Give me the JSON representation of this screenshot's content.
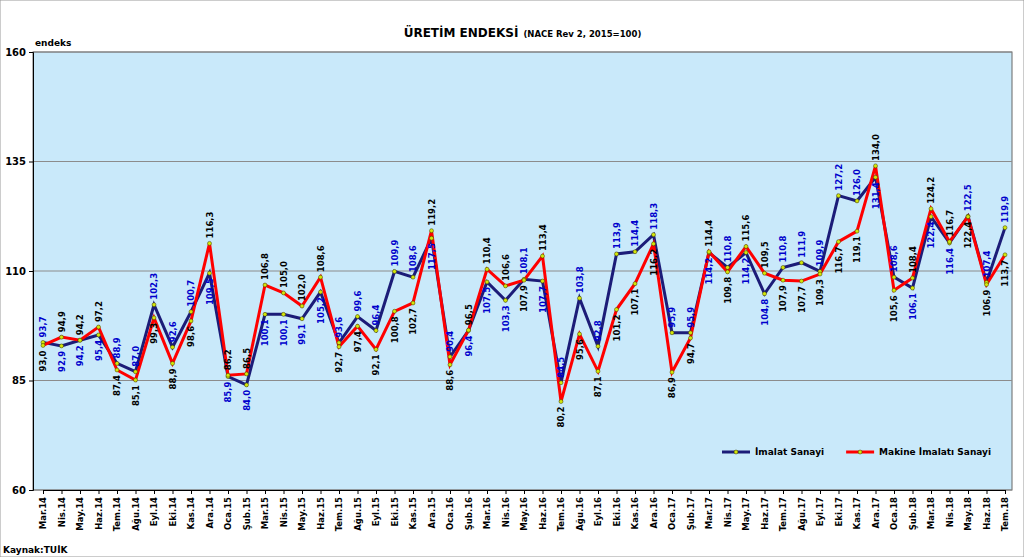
{
  "chart_data": {
    "type": "line",
    "title": "ÜRETİM ENDEKSİ",
    "subtitle": "(NACE Rev 2, 2015=100)",
    "y_label": "endeks",
    "source": "Kaynak:TUİK",
    "categories": [
      "Mar.14",
      "Nis.14",
      "May.14",
      "Haz.14",
      "Tem.14",
      "Ağu.14",
      "Eyl.14",
      "Eki.14",
      "Kas.14",
      "Ara.14",
      "Oca.15",
      "Şub.15",
      "Mar.15",
      "Nis.15",
      "May.15",
      "Haz.15",
      "Tem.15",
      "Ağu.15",
      "Eyl.15",
      "Eki.15",
      "Kas.15",
      "Ara.15",
      "Oca.16",
      "Şub.16",
      "Mar.16",
      "Nis.16",
      "May.16",
      "Haz.16",
      "Tem.16",
      "Ağu.16",
      "Eyl.16",
      "Eki.16",
      "Kas.16",
      "Ara.16",
      "Oca.17",
      "Şub.17",
      "Mar.17",
      "Nis.17",
      "May.17",
      "Haz.17",
      "Tem.17",
      "Ağu.17",
      "Eyl.17",
      "Eki.17",
      "Kas.17",
      "Ara.17",
      "Oca.18",
      "Şub.18",
      "Mar.18",
      "Nis.18",
      "May.18",
      "Haz.18",
      "Tem.18"
    ],
    "series": [
      {
        "name": "İmalat Sanayi",
        "color": "#1c1c78",
        "marker": "circle",
        "line_style": "solid",
        "values": [
          93.7,
          92.9,
          94.2,
          95.4,
          88.9,
          87.0,
          102.3,
          92.6,
          100.7,
          109.5,
          85.9,
          84.0,
          100.1,
          100.1,
          99.1,
          105.2,
          93.6,
          99.6,
          96.4,
          109.9,
          108.6,
          117.5,
          90.4,
          96.4,
          107.5,
          103.3,
          108.1,
          107.7,
          84.5,
          103.8,
          92.8,
          113.9,
          114.4,
          118.3,
          95.9,
          95.9,
          114.2,
          110.8,
          114.2,
          104.8,
          110.8,
          111.9,
          109.9,
          127.2,
          126.0,
          131.4,
          108.6,
          106.1,
          122.4,
          116.4,
          122.5,
          107.4,
          119.9
        ],
        "value_labels": [
          "93,7",
          "92,9",
          "94,2",
          "95,4",
          "88,9",
          "87,0",
          "102,3",
          "92,6",
          "100,7",
          "109,5",
          "85,9",
          "84,0",
          "100,1",
          "100,1",
          "99,1",
          "105,2",
          "93,6",
          "99,6",
          "96,4",
          "109,9",
          "108,6",
          "117,5",
          "90,4",
          "96,4",
          "107,5",
          "103,3",
          "108,1",
          "107,7",
          "84,5",
          "103,8",
          "92,8",
          "113,9",
          "114,4",
          "118,3",
          "95,9",
          "95,9",
          "114,2",
          "110,8",
          "114,2",
          "104,8",
          "110,8",
          "111,9",
          "109,9",
          "127,2",
          "126,0",
          "131,4",
          "108,6",
          "106,1",
          "122,4",
          "116,4",
          "122,5",
          "107,4",
          "119,9"
        ]
      },
      {
        "name": "Makine İmalatı Sanayi",
        "color": "#ff0000",
        "marker": "circle",
        "line_style": "solid",
        "values": [
          93.0,
          94.9,
          94.2,
          97.2,
          87.4,
          85.1,
          99.3,
          88.9,
          98.6,
          116.3,
          86.2,
          86.5,
          106.8,
          105.0,
          102.0,
          108.6,
          92.7,
          97.4,
          92.1,
          100.8,
          102.7,
          119.2,
          88.6,
          96.5,
          110.4,
          106.6,
          107.9,
          113.4,
          80.2,
          95.6,
          87.1,
          101.2,
          107.1,
          116.2,
          86.9,
          94.7,
          114.4,
          109.8,
          115.6,
          109.5,
          107.9,
          107.7,
          109.3,
          116.7,
          119.1,
          134.0,
          105.6,
          108.4,
          124.2,
          116.7,
          122.4,
          106.9,
          113.7
        ],
        "value_labels": [
          "93,0",
          "94,9",
          "94,2",
          "97,2",
          "87,4",
          "85,1",
          "99,3",
          "88,9",
          "98,6",
          "116,3",
          "86,2",
          "86,5",
          "106,8",
          "105,0",
          "102,0",
          "108,6",
          "92,7",
          "97,4",
          "92,1",
          "100,8",
          "102,7",
          "119,2",
          "88,6",
          "96,5",
          "110,4",
          "106,6",
          "107,9",
          "113,4",
          "80,2",
          "95,6",
          "87,1",
          "101,2",
          "107,1",
          "116,2",
          "86,9",
          "94,7",
          "114,4",
          "109,8",
          "115,6",
          "109,5",
          "107,9",
          "107,7",
          "109,3",
          "116,7",
          "119,1",
          "134,0",
          "105,6",
          "108,4",
          "124,2",
          "116,7",
          "122,4",
          "106,9",
          "113,7"
        ]
      }
    ],
    "ylim": [
      60,
      160
    ],
    "yticks": [
      60,
      85,
      110,
      135,
      160
    ],
    "grid": true,
    "legend": "bottom-right",
    "data_labels": true
  }
}
